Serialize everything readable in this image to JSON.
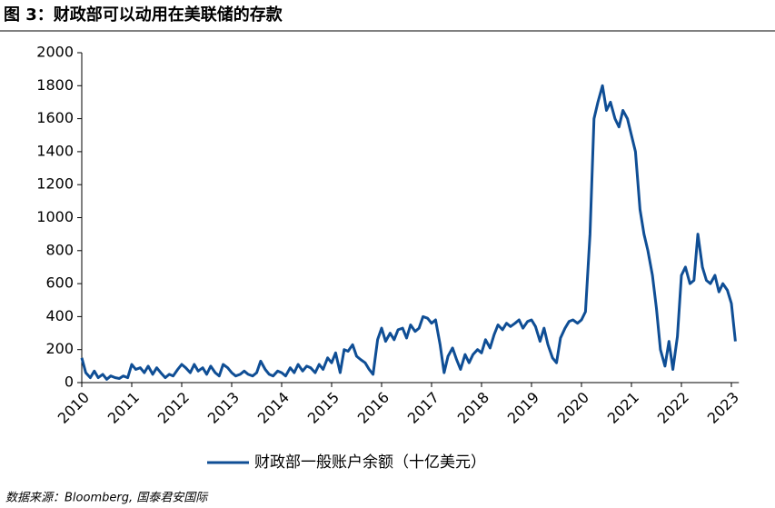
{
  "chart_data": {
    "type": "line",
    "title": "图 3：财政部可以动用在美联储的存款",
    "source": "数据来源：Bloomberg, 国泰君安国际",
    "x": [
      2010,
      2010.08,
      2010.17,
      2010.25,
      2010.33,
      2010.42,
      2010.5,
      2010.58,
      2010.67,
      2010.75,
      2010.83,
      2010.92,
      2011,
      2011.08,
      2011.17,
      2011.25,
      2011.33,
      2011.42,
      2011.5,
      2011.58,
      2011.67,
      2011.75,
      2011.83,
      2011.92,
      2012,
      2012.08,
      2012.17,
      2012.25,
      2012.33,
      2012.42,
      2012.5,
      2012.58,
      2012.67,
      2012.75,
      2012.83,
      2012.92,
      2013,
      2013.08,
      2013.17,
      2013.25,
      2013.33,
      2013.42,
      2013.5,
      2013.58,
      2013.67,
      2013.75,
      2013.83,
      2013.92,
      2014,
      2014.08,
      2014.17,
      2014.25,
      2014.33,
      2014.42,
      2014.5,
      2014.58,
      2014.67,
      2014.75,
      2014.83,
      2014.92,
      2015,
      2015.08,
      2015.17,
      2015.25,
      2015.33,
      2015.42,
      2015.5,
      2015.58,
      2015.67,
      2015.75,
      2015.83,
      2015.92,
      2016,
      2016.08,
      2016.17,
      2016.25,
      2016.33,
      2016.42,
      2016.5,
      2016.58,
      2016.67,
      2016.75,
      2016.83,
      2016.92,
      2017,
      2017.08,
      2017.17,
      2017.25,
      2017.33,
      2017.42,
      2017.5,
      2017.58,
      2017.67,
      2017.75,
      2017.83,
      2017.92,
      2018,
      2018.08,
      2018.17,
      2018.25,
      2018.33,
      2018.42,
      2018.5,
      2018.58,
      2018.67,
      2018.75,
      2018.83,
      2018.92,
      2019,
      2019.08,
      2019.17,
      2019.25,
      2019.33,
      2019.42,
      2019.5,
      2019.58,
      2019.67,
      2019.75,
      2019.83,
      2019.92,
      2020,
      2020.08,
      2020.17,
      2020.25,
      2020.33,
      2020.42,
      2020.5,
      2020.58,
      2020.67,
      2020.75,
      2020.83,
      2020.92,
      2021,
      2021.08,
      2021.17,
      2021.25,
      2021.33,
      2021.42,
      2021.5,
      2021.58,
      2021.67,
      2021.75,
      2021.83,
      2021.92,
      2022,
      2022.08,
      2022.17,
      2022.25,
      2022.33,
      2022.42,
      2022.5,
      2022.58,
      2022.67,
      2022.75,
      2022.83,
      2022.92,
      2023,
      2023.08
    ],
    "series": [
      {
        "name": "财政部一般账户余额（十亿美元）",
        "color": "#0f4e95",
        "values": [
          150,
          60,
          30,
          70,
          30,
          50,
          20,
          40,
          30,
          25,
          40,
          30,
          110,
          80,
          90,
          60,
          100,
          50,
          90,
          60,
          30,
          50,
          40,
          80,
          110,
          90,
          60,
          110,
          70,
          90,
          50,
          100,
          60,
          40,
          110,
          90,
          60,
          40,
          50,
          70,
          50,
          40,
          60,
          130,
          80,
          50,
          40,
          70,
          60,
          40,
          90,
          60,
          110,
          70,
          100,
          90,
          60,
          110,
          80,
          150,
          120,
          180,
          60,
          200,
          190,
          230,
          160,
          140,
          120,
          80,
          50,
          260,
          330,
          250,
          300,
          260,
          320,
          330,
          270,
          350,
          310,
          330,
          400,
          390,
          360,
          380,
          230,
          60,
          160,
          210,
          140,
          80,
          170,
          120,
          170,
          200,
          180,
          260,
          210,
          290,
          350,
          320,
          360,
          340,
          360,
          380,
          330,
          370,
          380,
          340,
          250,
          330,
          230,
          150,
          120,
          270,
          330,
          370,
          380,
          360,
          380,
          430,
          900,
          1600,
          1700,
          1800,
          1650,
          1700,
          1600,
          1550,
          1650,
          1600,
          1500,
          1400,
          1050,
          900,
          800,
          650,
          450,
          200,
          100,
          250,
          80,
          280,
          650,
          700,
          600,
          620,
          900,
          700,
          620,
          600,
          650,
          550,
          600,
          560,
          480,
          250
        ]
      }
    ],
    "xlim": [
      2010,
      2023.15
    ],
    "xticks": [
      2010,
      2011,
      2012,
      2013,
      2014,
      2015,
      2016,
      2017,
      2018,
      2019,
      2020,
      2021,
      2022,
      2023
    ],
    "ylim": [
      0,
      2000
    ],
    "yticks": [
      0,
      200,
      400,
      600,
      800,
      1000,
      1200,
      1400,
      1600,
      1800,
      2000
    ],
    "grid": false,
    "legend": "bottom"
  }
}
